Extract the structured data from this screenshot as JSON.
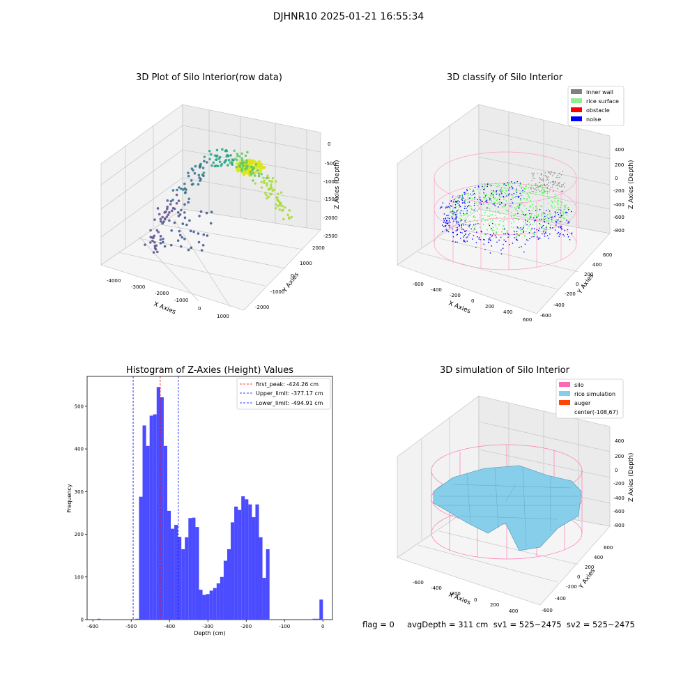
{
  "figure": {
    "suptitle": "DJHNR10 2025-01-21 16:55:34",
    "footer": "flag = 0     avgDepth = 311 cm  sv1 = 525~2475  sv2 = 525~2475"
  },
  "colors": {
    "inner_wall": "#808080",
    "rice_surface": "#90ee90",
    "obstacle": "#ff0000",
    "noise": "#0000ff",
    "silo": "#ff69b4",
    "rice_simulation": "#87ceeb",
    "auger": "#ff4500",
    "hist_bar": "#4b4bff"
  },
  "plots": {
    "raw": {
      "title": "3D Plot of Silo Interior(row data)",
      "xlabel": "X Axies",
      "ylabel": "Y Axies",
      "zlabel": "Z Axies (Depth)",
      "xticks": [
        "-4000",
        "-3000",
        "-2000",
        "-1000",
        "0",
        "1000"
      ],
      "yticks": [
        "2000",
        "1000",
        "0",
        "-1000",
        "-2000"
      ],
      "zticks": [
        "0",
        "-500",
        "-1000",
        "-1500",
        "-2000",
        "-2500"
      ]
    },
    "classify": {
      "title": "3D classify of Silo Interior",
      "xlabel": "X Axies",
      "ylabel": "Y Axies",
      "zlabel": "Z Axies (Depth)",
      "xticks": [
        "-600",
        "-400",
        "-200",
        "0",
        "200",
        "400",
        "600"
      ],
      "yticks": [
        "600",
        "400",
        "200",
        "0",
        "-200",
        "-400",
        "-600"
      ],
      "zticks": [
        "400",
        "200",
        "0",
        "-200",
        "-400",
        "-600",
        "-800"
      ],
      "legend": [
        "inner wall",
        "rice surface",
        "obstacle",
        "noise"
      ]
    },
    "simulation": {
      "title": "3D simulation of Silo Interior",
      "xlabel": "X Axies",
      "ylabel": "Y Axies",
      "zlabel": "Z Axies (Depth)",
      "xticks": [
        "-600",
        "-400",
        "-200",
        "0",
        "200",
        "400"
      ],
      "yticks": [
        "600",
        "400",
        "200",
        "0",
        "-200",
        "-400",
        "-600"
      ],
      "zticks": [
        "400",
        "200",
        "0",
        "-200",
        "-400",
        "-600",
        "-800"
      ],
      "legend": [
        "silo",
        "rice simulation",
        "auger",
        "center(-108,67)"
      ]
    }
  },
  "chart_data": {
    "type": "bar",
    "title": "Histogram of Z-Axies (Height) Values",
    "xlabel": "Depth (cm)",
    "ylabel": "Frequency",
    "xlim": [
      -615,
      25
    ],
    "ylim": [
      0,
      570
    ],
    "xticks": [
      -600,
      -500,
      -400,
      -300,
      -200,
      -100,
      0
    ],
    "yticks": [
      0,
      100,
      200,
      300,
      400,
      500
    ],
    "bin_width": 9.2,
    "bin_starts": [
      -589,
      -488.8,
      -479.6,
      -470.4,
      -461.2,
      -452,
      -442.8,
      -433.6,
      -424.4,
      -415.2,
      -406,
      -396.8,
      -387.6,
      -378.4,
      -369.2,
      -360,
      -350.8,
      -341.6,
      -332.4,
      -323.2,
      -314,
      -304.8,
      -295.6,
      -286.4,
      -277.2,
      -268,
      -258.8,
      -249.6,
      -240.4,
      -231.2,
      -222,
      -212.8,
      -203.6,
      -194.4,
      -185.2,
      -176,
      -166.8,
      -157.6,
      -148.4,
      -139.2,
      -130,
      -120.8,
      -111.6,
      -102.4,
      -93.2,
      -84,
      -74.8,
      -65.6,
      -56.4,
      -27,
      -18,
      -9
    ],
    "counts": [
      2,
      2,
      288,
      455,
      407,
      478,
      481,
      545,
      521,
      407,
      255,
      213,
      222,
      194,
      165,
      193,
      238,
      239,
      217,
      70,
      58,
      60,
      68,
      74,
      85,
      100,
      138,
      165,
      228,
      265,
      257,
      289,
      282,
      270,
      240,
      270,
      193,
      98,
      165,
      0,
      0,
      0,
      0,
      0,
      0,
      0,
      0,
      0,
      0,
      2,
      2,
      47
    ],
    "lines": [
      {
        "label": "first_peak: -424.26 cm",
        "x": -424.26,
        "color": "#ff0000"
      },
      {
        "label": "Upper_limit: -377.17 cm",
        "x": -377.17,
        "color": "#0000ff"
      },
      {
        "label": "Lower_limit: -494.91 cm",
        "x": -494.91,
        "color": "#0000ff"
      }
    ]
  }
}
